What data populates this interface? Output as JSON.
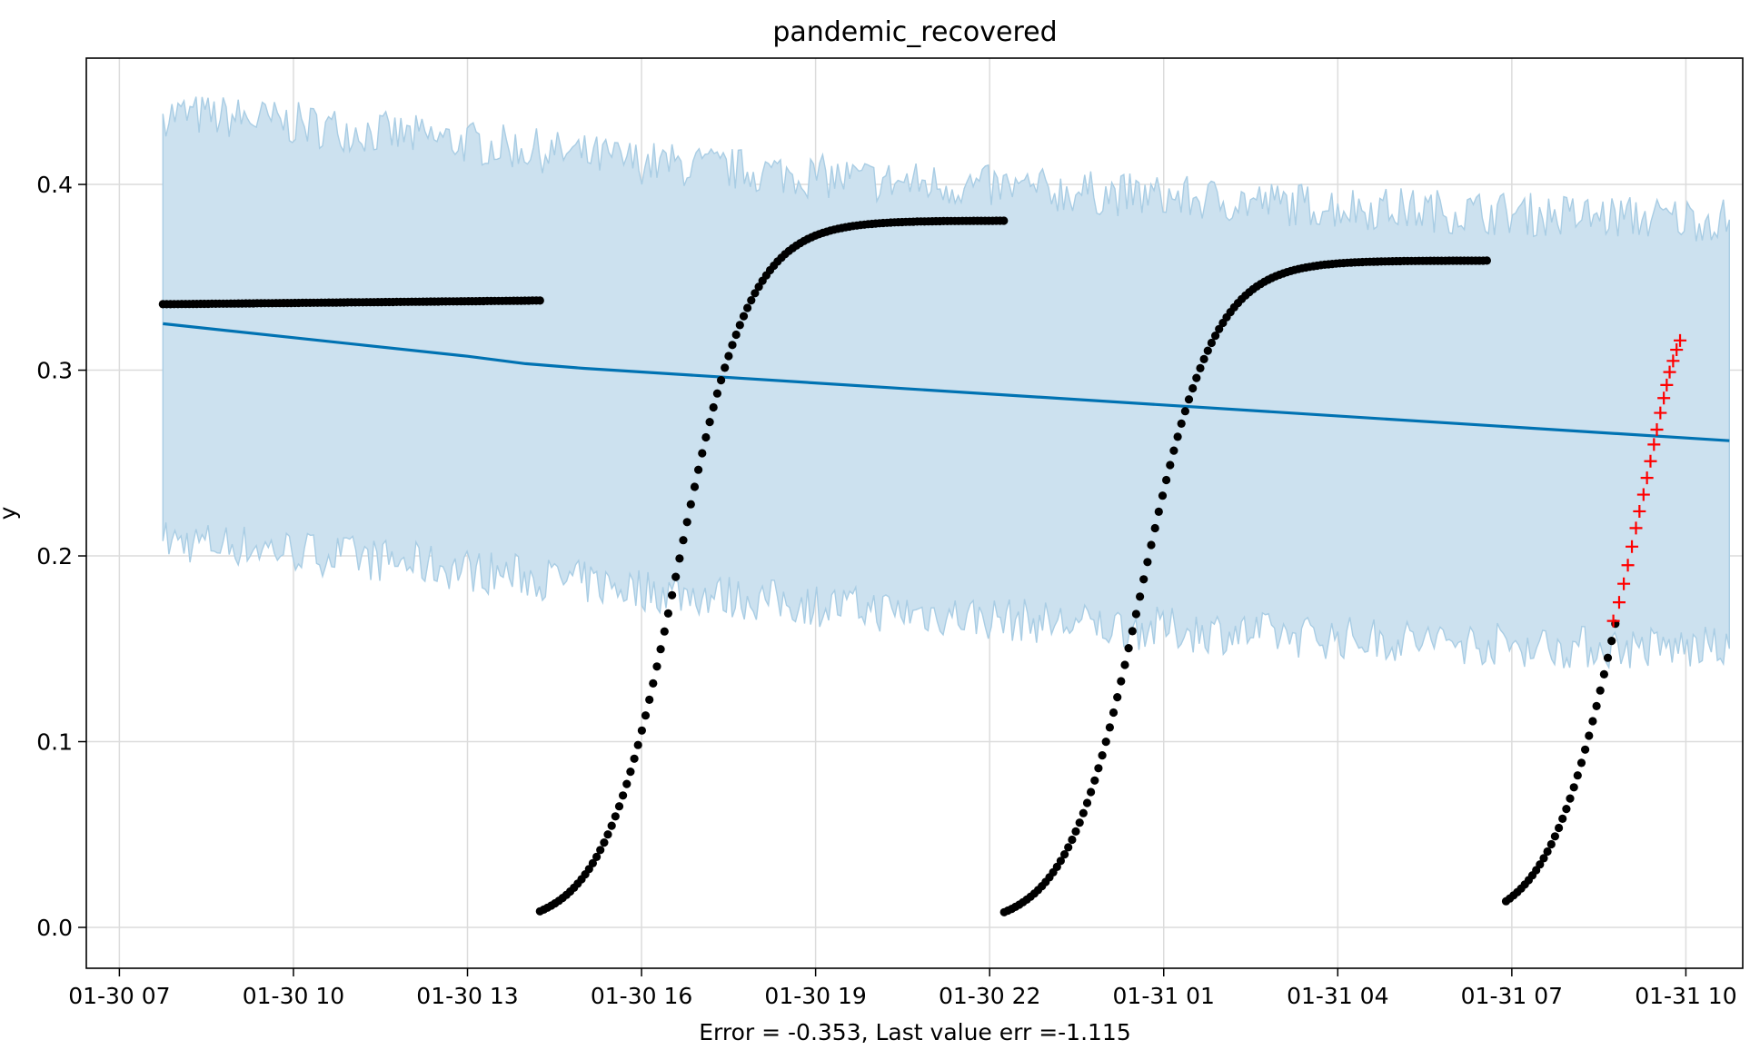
{
  "chart_data": {
    "type": "line",
    "title": "pandemic_recovered",
    "xlabel": "Error = -0.353, Last value err =-1.115",
    "ylabel": "y",
    "x_unit": "hour",
    "x_ticks": [
      {
        "value": 7,
        "label": "01-30 07"
      },
      {
        "value": 10,
        "label": "01-30 10"
      },
      {
        "value": 13,
        "label": "01-30 13"
      },
      {
        "value": 16,
        "label": "01-30 16"
      },
      {
        "value": 19,
        "label": "01-30 19"
      },
      {
        "value": 22,
        "label": "01-30 22"
      },
      {
        "value": 25,
        "label": "01-31 01"
      },
      {
        "value": 28,
        "label": "01-31 04"
      },
      {
        "value": 31,
        "label": "01-31 07"
      },
      {
        "value": 34,
        "label": "01-31 10"
      }
    ],
    "y_ticks": [
      {
        "value": 0.0,
        "label": "0.0"
      },
      {
        "value": 0.1,
        "label": "0.1"
      },
      {
        "value": 0.2,
        "label": "0.2"
      },
      {
        "value": 0.3,
        "label": "0.3"
      },
      {
        "value": 0.4,
        "label": "0.4"
      }
    ],
    "xlim": [
      6.43,
      34.98
    ],
    "ylim": [
      -0.022,
      0.468
    ],
    "grid": true,
    "colors": {
      "observed": "#000000",
      "forecast": "#0072b2",
      "band_fill": "#cce1ef",
      "band_edge": "#a9cde4",
      "future": "#ff0000",
      "grid": "#dcdcdc"
    },
    "forecast_line": {
      "x": [
        7.75,
        13.0,
        14.0,
        15.0,
        34.75
      ],
      "y": [
        0.325,
        0.3075,
        0.3035,
        0.301,
        0.262
      ]
    },
    "uncertainty_band": {
      "x": [
        7.75,
        9.0,
        12.0,
        16.0,
        20.0,
        24.0,
        28.0,
        32.0,
        34.75
      ],
      "upper": [
        0.438,
        0.436,
        0.426,
        0.412,
        0.402,
        0.395,
        0.388,
        0.383,
        0.381
      ],
      "lower": [
        0.208,
        0.206,
        0.196,
        0.182,
        0.171,
        0.162,
        0.156,
        0.151,
        0.15
      ],
      "noise": 0.012
    },
    "observed_segments": [
      {
        "x_start": 7.75,
        "x_end": 14.25,
        "level_start": 0.3355,
        "level_end": 0.3375,
        "kind": "flat"
      },
      {
        "x_start": 14.25,
        "x_end": 22.25,
        "x_mid": 16.6,
        "rate": 1.6,
        "plateau": 0.3805,
        "kind": "logistic"
      },
      {
        "x_start": 22.25,
        "x_end": 30.6,
        "x_mid": 24.6,
        "rate": 1.6,
        "plateau": 0.359,
        "kind": "logistic"
      },
      {
        "x_start": 30.9,
        "x_end": 32.8,
        "x_mid": 32.9,
        "rate": 1.6,
        "plateau": 0.36,
        "kind": "logistic"
      }
    ],
    "future_points": [
      {
        "x": 32.75,
        "y": 0.165
      },
      {
        "x": 32.85,
        "y": 0.175
      },
      {
        "x": 32.93,
        "y": 0.185
      },
      {
        "x": 33.0,
        "y": 0.195
      },
      {
        "x": 33.07,
        "y": 0.205
      },
      {
        "x": 33.14,
        "y": 0.215
      },
      {
        "x": 33.2,
        "y": 0.224
      },
      {
        "x": 33.27,
        "y": 0.233
      },
      {
        "x": 33.33,
        "y": 0.242
      },
      {
        "x": 33.39,
        "y": 0.251
      },
      {
        "x": 33.45,
        "y": 0.26
      },
      {
        "x": 33.5,
        "y": 0.268
      },
      {
        "x": 33.56,
        "y": 0.277
      },
      {
        "x": 33.62,
        "y": 0.285
      },
      {
        "x": 33.67,
        "y": 0.292
      },
      {
        "x": 33.72,
        "y": 0.299
      },
      {
        "x": 33.78,
        "y": 0.305
      },
      {
        "x": 33.84,
        "y": 0.311
      },
      {
        "x": 33.9,
        "y": 0.316
      }
    ]
  }
}
